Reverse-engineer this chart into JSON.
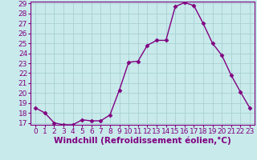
{
  "x": [
    0,
    1,
    2,
    3,
    4,
    5,
    6,
    7,
    8,
    9,
    10,
    11,
    12,
    13,
    14,
    15,
    16,
    17,
    18,
    19,
    20,
    21,
    22,
    23
  ],
  "y": [
    18.5,
    18.0,
    17.0,
    16.8,
    16.8,
    17.3,
    17.2,
    17.2,
    17.8,
    20.3,
    23.1,
    23.2,
    24.8,
    25.3,
    25.3,
    28.7,
    29.1,
    28.8,
    27.0,
    25.0,
    23.8,
    21.8,
    20.1,
    18.5
  ],
  "color": "#800080",
  "bg_color": "#c8eaeb",
  "grid_color": "#a8d0d2",
  "xlabel": "Windchill (Refroidissement éolien,°C)",
  "ylabel": "",
  "ylim": [
    17,
    29
  ],
  "xlim": [
    -0.5,
    23.5
  ],
  "yticks": [
    17,
    18,
    19,
    20,
    21,
    22,
    23,
    24,
    25,
    26,
    27,
    28,
    29
  ],
  "xticks": [
    0,
    1,
    2,
    3,
    4,
    5,
    6,
    7,
    8,
    9,
    10,
    11,
    12,
    13,
    14,
    15,
    16,
    17,
    18,
    19,
    20,
    21,
    22,
    23
  ],
  "marker": "D",
  "markersize": 2.5,
  "linewidth": 1.0,
  "xlabel_fontsize": 7.5,
  "tick_fontsize": 6.5
}
